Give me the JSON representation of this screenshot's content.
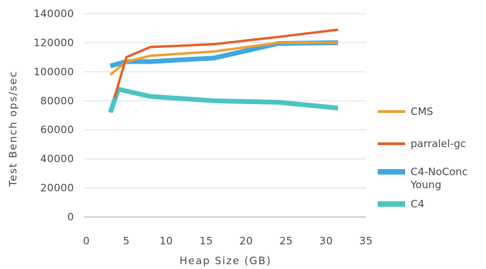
{
  "chart_data": {
    "type": "line",
    "xlabel": "Heap Size (GB)",
    "ylabel": "Test Bench ops/sec",
    "xlim": [
      0,
      35
    ],
    "ylim": [
      0,
      140000
    ],
    "x_ticks": [
      "0",
      "5",
      "10",
      "15",
      "20",
      "25",
      "30",
      "35"
    ],
    "y_ticks": [
      "0",
      "20000",
      "40000",
      "60000",
      "80000",
      "100000",
      "120000",
      "140000"
    ],
    "grid": "horizontal",
    "legend_position": "right",
    "series": [
      {
        "name": "CMS",
        "color": "#f39c2f",
        "stroke": "thin",
        "x": [
          3,
          5,
          8,
          16,
          24,
          31.5
        ],
        "y": [
          98000,
          107000,
          111000,
          114000,
          120000,
          120000
        ]
      },
      {
        "name": "parralel-gc",
        "color": "#e45f2b",
        "stroke": "thin",
        "x": [
          3.5,
          5,
          8,
          16,
          24,
          31.5
        ],
        "y": [
          82000,
          110000,
          117000,
          119000,
          124000,
          129000
        ]
      },
      {
        "name": "C4-NoConc Young",
        "color": "#3fa9df",
        "stroke": "thick",
        "x": [
          3,
          5,
          8,
          16,
          24,
          31.5
        ],
        "y": [
          104000,
          107000,
          107000,
          109500,
          119500,
          120000
        ]
      },
      {
        "name": "C4",
        "color": "#4cc4c4",
        "stroke": "thick",
        "x": [
          3,
          4,
          8,
          16,
          24,
          31.5
        ],
        "y": [
          72000,
          88000,
          83000,
          80000,
          79000,
          75000
        ]
      }
    ]
  }
}
